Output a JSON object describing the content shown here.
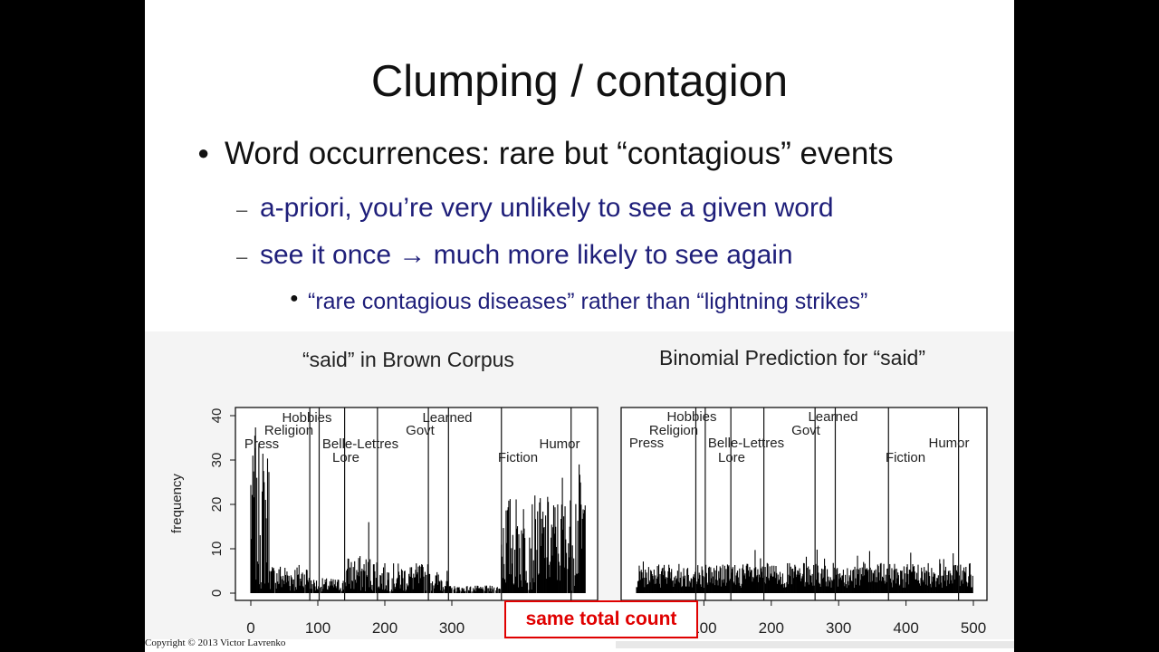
{
  "slide": {
    "title": "Clumping / contagion",
    "bullet1": "Word occurrences: rare but “contagious” events",
    "sub1": "a-priori, you’re very unlikely to see a given word",
    "sub2": "see it once → much more likely to see again",
    "subsub1": "“rare contagious diseases” rather than “lightning strikes”",
    "callout": "same total count",
    "copyright": "Copyright © 2013 Victor Lavrenko"
  },
  "colors": {
    "text_blue": "#1f1f7a",
    "callout_red": "#e00000"
  },
  "chart_data": [
    {
      "type": "bar",
      "title": "“said” in Brown Corpus",
      "ylabel": "frequency",
      "xlim": [
        0,
        500
      ],
      "ylim": [
        0,
        40
      ],
      "xticks": [
        "0",
        "100",
        "200",
        "300"
      ],
      "yticks": [
        "0",
        "10",
        "20",
        "30",
        "40"
      ],
      "section_boundaries": [
        88,
        102,
        140,
        189,
        265,
        295,
        374,
        478
      ],
      "section_labels": [
        "Press",
        "Religion",
        "Hobbies",
        "Lore",
        "Belle-Lettres",
        "Govt",
        "Learned",
        "Fiction",
        "Humor"
      ],
      "segment_levels": [
        {
          "from": 0,
          "to": 10,
          "level": 24
        },
        {
          "from": 10,
          "to": 30,
          "level": 20
        },
        {
          "from": 30,
          "to": 88,
          "level": 4
        },
        {
          "from": 88,
          "to": 102,
          "level": 2
        },
        {
          "from": 102,
          "to": 140,
          "level": 2
        },
        {
          "from": 140,
          "to": 189,
          "level": 5
        },
        {
          "from": 189,
          "to": 265,
          "level": 4
        },
        {
          "from": 265,
          "to": 295,
          "level": 3
        },
        {
          "from": 295,
          "to": 374,
          "level": 1
        },
        {
          "from": 374,
          "to": 478,
          "level": 13
        },
        {
          "from": 478,
          "to": 500,
          "level": 16
        }
      ],
      "peaks": [
        {
          "x": 3,
          "value": 31
        },
        {
          "x": 9,
          "value": 26
        },
        {
          "x": 20,
          "value": 25
        },
        {
          "x": 176,
          "value": 16
        },
        {
          "x": 465,
          "value": 26
        },
        {
          "x": 490,
          "value": 29
        }
      ]
    },
    {
      "type": "bar",
      "title": "Binomial Prediction for “said”",
      "xlim": [
        0,
        500
      ],
      "ylim": [
        0,
        40
      ],
      "xticks": [
        "100",
        "200",
        "300",
        "400",
        "500"
      ],
      "section_boundaries": [
        88,
        102,
        140,
        189,
        265,
        295,
        374,
        478
      ],
      "section_labels": [
        "Press",
        "Religion",
        "Hobbies",
        "Lore",
        "Belle-Lettres",
        "Govt",
        "Learned",
        "Fiction",
        "Humor"
      ],
      "mean_level": 4,
      "max_level": 10
    }
  ]
}
